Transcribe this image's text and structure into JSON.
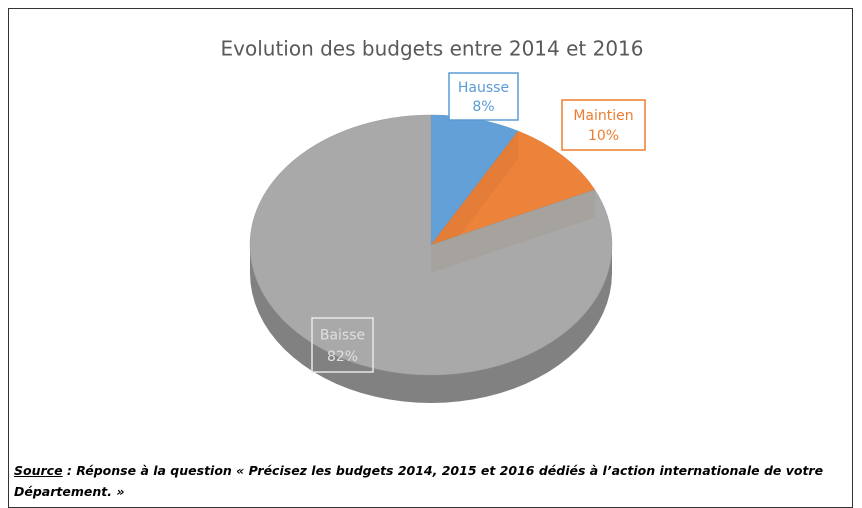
{
  "chart_data": {
    "type": "pie",
    "title": "Evolution des budgets entre 2014 et 2016",
    "categories": [
      "Hausse",
      "Maintien",
      "Baisse"
    ],
    "values": [
      8,
      10,
      82
    ],
    "value_labels": [
      "8%",
      "10%",
      "82%"
    ],
    "colors": [
      "#5b9bd5",
      "#ed7d31",
      "#a5a5a5"
    ]
  },
  "source": {
    "label": "Source",
    "text": ": Réponse à la question « Précisez les budgets 2014, 2015 et 2016 dédiés à l’action internationale de votre Département. »"
  }
}
